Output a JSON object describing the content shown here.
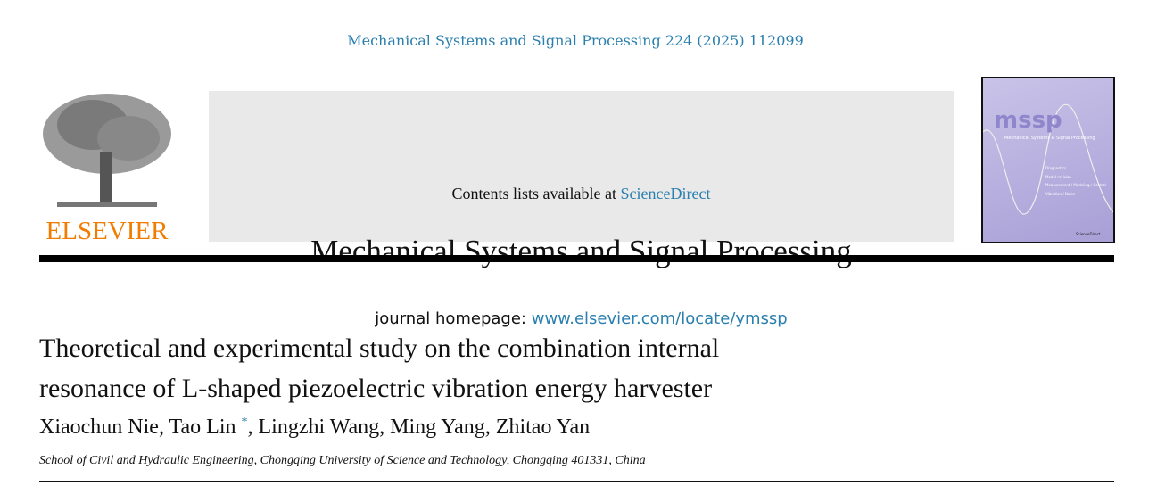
{
  "citation": "Mechanical Systems and Signal Processing 224 (2025) 112099",
  "banner": {
    "contents_prefix": "Contents lists available at ",
    "contents_link": "ScienceDirect",
    "journal_title": "Mechanical Systems and Signal Processing",
    "homepage_prefix": "journal homepage: ",
    "homepage_link": "www.elsevier.com/locate/ymssp"
  },
  "publisher_logo": {
    "text": "ELSEVIER",
    "color": "#f07d00"
  },
  "cover": {
    "acronym": "mssp",
    "subtitle": "Mechanical Systems & Signal Processing",
    "topics": [
      "Diagnostics",
      "Model revision",
      "Measurement / Modeling / Control",
      "Vibration / Noise"
    ],
    "footer": "ScienceDirect",
    "background": "#b8b0e0"
  },
  "article": {
    "title_line1": "Theoretical and experimental study on the combination internal",
    "title_line2": "resonance of L-shaped piezoelectric vibration energy harvester",
    "authors_before": "Xiaochun Nie, Tao Lin",
    "corresponding_mark": "*",
    "authors_after": ", Lingzhi Wang, Ming Yang, Zhitao Yan",
    "affiliation": "School of Civil and Hydraulic Engineering, Chongqing University of Science and Technology, Chongqing 401331, China"
  }
}
